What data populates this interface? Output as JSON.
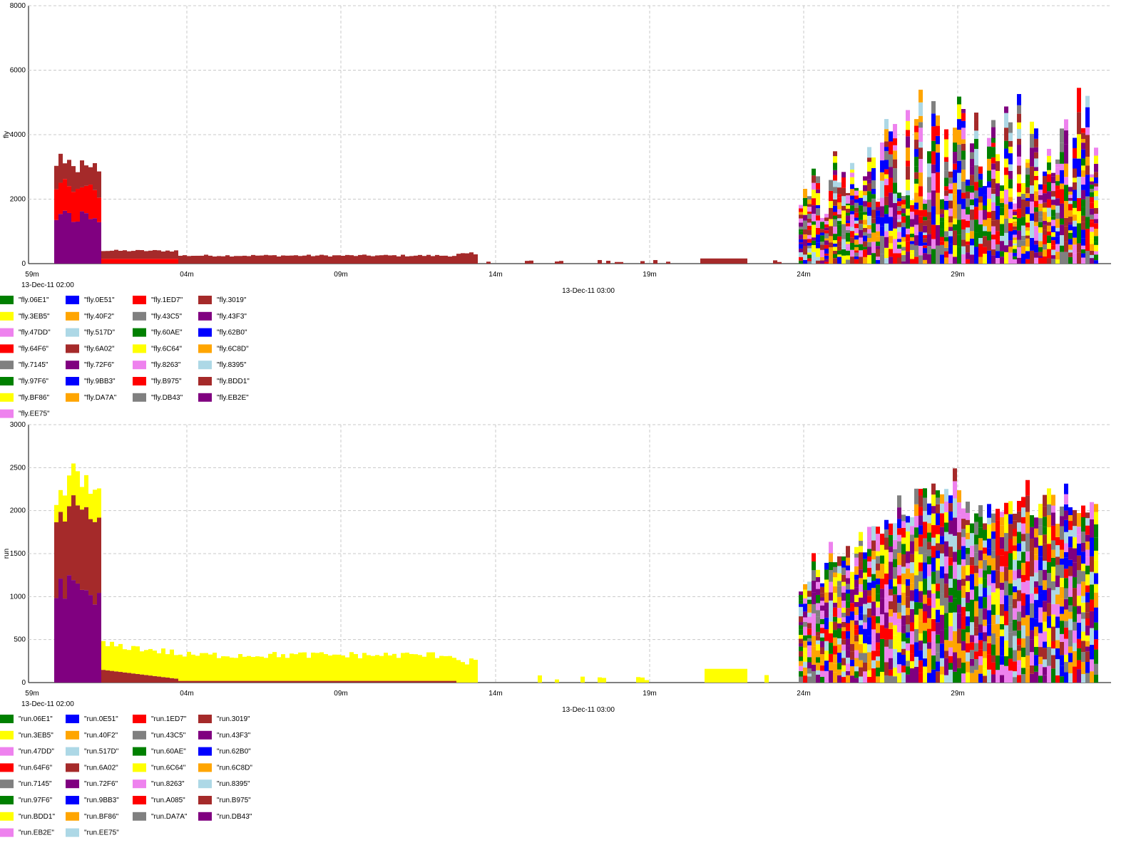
{
  "chart_data": [
    {
      "type": "bar",
      "stacked": true,
      "ylabel": "fly",
      "ylim": [
        0,
        8000
      ],
      "yticks": [
        0,
        2000,
        4000,
        6000,
        8000
      ],
      "grid": true,
      "xticks": [
        "59m",
        "04m",
        "09m",
        "14m",
        "19m",
        "24m",
        "29m"
      ],
      "date_labels": [
        "13-Dec-11 02:00",
        "13-Dec-11 03:00"
      ],
      "legend_placement": "bottom",
      "legend": [
        {
          "label": "\"fly.06E1\"",
          "color": "#008000"
        },
        {
          "label": "\"fly.0E51\"",
          "color": "#0000ff"
        },
        {
          "label": "\"fly.1ED7\"",
          "color": "#ff0000"
        },
        {
          "label": "\"fly.3019\"",
          "color": "#a52a2a"
        },
        {
          "label": "\"fly.3EB5\"",
          "color": "#ffff00"
        },
        {
          "label": "\"fly.40F2\"",
          "color": "#ffa500"
        },
        {
          "label": "\"fly.43C5\"",
          "color": "#808080"
        },
        {
          "label": "\"fly.43F3\"",
          "color": "#800080"
        },
        {
          "label": "\"fly.47DD\"",
          "color": "#ee82ee"
        },
        {
          "label": "\"fly.517D\"",
          "color": "#add8e6"
        },
        {
          "label": "\"fly.60AE\"",
          "color": "#008000"
        },
        {
          "label": "\"fly.62B0\"",
          "color": "#0000ff"
        },
        {
          "label": "\"fly.64F6\"",
          "color": "#ff0000"
        },
        {
          "label": "\"fly.6A02\"",
          "color": "#a52a2a"
        },
        {
          "label": "\"fly.6C64\"",
          "color": "#ffff00"
        },
        {
          "label": "\"fly.6C8D\"",
          "color": "#ffa500"
        },
        {
          "label": "\"fly.7145\"",
          "color": "#808080"
        },
        {
          "label": "\"fly.72F6\"",
          "color": "#800080"
        },
        {
          "label": "\"fly.8263\"",
          "color": "#ee82ee"
        },
        {
          "label": "\"fly.8395\"",
          "color": "#add8e6"
        },
        {
          "label": "\"fly.97F6\"",
          "color": "#008000"
        },
        {
          "label": "\"fly.9BB3\"",
          "color": "#0000ff"
        },
        {
          "label": "\"fly.B975\"",
          "color": "#ff0000"
        },
        {
          "label": "\"fly.BDD1\"",
          "color": "#a52a2a"
        },
        {
          "label": "\"fly.BF86\"",
          "color": "#ffff00"
        },
        {
          "label": "\"fly.DA7A\"",
          "color": "#ffa500"
        },
        {
          "label": "\"fly.DB43\"",
          "color": "#808080"
        },
        {
          "label": "\"fly.EB2E\"",
          "color": "#800080"
        },
        {
          "label": "\"fly.EE75\"",
          "color": "#ee82ee"
        }
      ]
    },
    {
      "type": "bar",
      "stacked": true,
      "ylabel": "run",
      "ylim": [
        0,
        3000
      ],
      "yticks": [
        0,
        500,
        1000,
        1500,
        2000,
        2500,
        3000
      ],
      "grid": true,
      "xticks": [
        "59m",
        "04m",
        "09m",
        "14m",
        "19m",
        "24m",
        "29m"
      ],
      "date_labels": [
        "13-Dec-11 02:00",
        "13-Dec-11 03:00"
      ],
      "legend_placement": "bottom",
      "legend": [
        {
          "label": "\"run.06E1\"",
          "color": "#008000"
        },
        {
          "label": "\"run.0E51\"",
          "color": "#0000ff"
        },
        {
          "label": "\"run.1ED7\"",
          "color": "#ff0000"
        },
        {
          "label": "\"run.3019\"",
          "color": "#a52a2a"
        },
        {
          "label": "\"run.3EB5\"",
          "color": "#ffff00"
        },
        {
          "label": "\"run.40F2\"",
          "color": "#ffa500"
        },
        {
          "label": "\"run.43C5\"",
          "color": "#808080"
        },
        {
          "label": "\"run.43F3\"",
          "color": "#800080"
        },
        {
          "label": "\"run.47DD\"",
          "color": "#ee82ee"
        },
        {
          "label": "\"run.517D\"",
          "color": "#add8e6"
        },
        {
          "label": "\"run.60AE\"",
          "color": "#008000"
        },
        {
          "label": "\"run.62B0\"",
          "color": "#0000ff"
        },
        {
          "label": "\"run.64F6\"",
          "color": "#ff0000"
        },
        {
          "label": "\"run.6A02\"",
          "color": "#a52a2a"
        },
        {
          "label": "\"run.6C64\"",
          "color": "#ffff00"
        },
        {
          "label": "\"run.6C8D\"",
          "color": "#ffa500"
        },
        {
          "label": "\"run.7145\"",
          "color": "#808080"
        },
        {
          "label": "\"run.72F6\"",
          "color": "#800080"
        },
        {
          "label": "\"run.8263\"",
          "color": "#ee82ee"
        },
        {
          "label": "\"run.8395\"",
          "color": "#add8e6"
        },
        {
          "label": "\"run.97F6\"",
          "color": "#008000"
        },
        {
          "label": "\"run.9BB3\"",
          "color": "#0000ff"
        },
        {
          "label": "\"run.A085\"",
          "color": "#ff0000"
        },
        {
          "label": "\"run.B975\"",
          "color": "#a52a2a"
        },
        {
          "label": "\"run.BDD1\"",
          "color": "#ffff00"
        },
        {
          "label": "\"run.BF86\"",
          "color": "#ffa500"
        },
        {
          "label": "\"run.DA7A\"",
          "color": "#808080"
        },
        {
          "label": "\"run.DB43\"",
          "color": "#800080"
        },
        {
          "label": "\"run.EB2E\"",
          "color": "#ee82ee"
        },
        {
          "label": "\"run.EE75\"",
          "color": "#add8e6"
        }
      ]
    }
  ]
}
